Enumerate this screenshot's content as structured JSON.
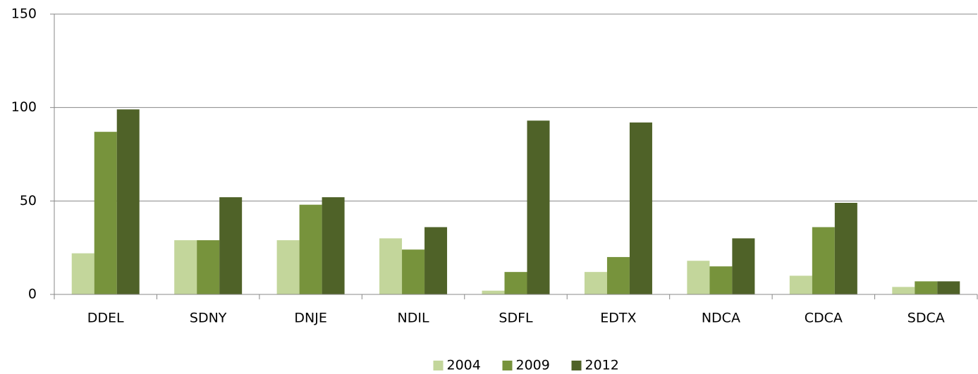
{
  "chart_data": {
    "type": "bar",
    "categories": [
      "DDEL",
      "SDNY",
      "DNJE",
      "NDIL",
      "SDFL",
      "EDTX",
      "NDCA",
      "CDCA",
      "SDCA"
    ],
    "series": [
      {
        "name": "2004",
        "color": "#c3d69b",
        "values": [
          22,
          29,
          29,
          30,
          2,
          12,
          18,
          10,
          4
        ]
      },
      {
        "name": "2009",
        "color": "#77933c",
        "values": [
          87,
          29,
          48,
          24,
          12,
          20,
          15,
          36,
          7
        ]
      },
      {
        "name": "2012",
        "color": "#4f6228",
        "values": [
          99,
          52,
          52,
          36,
          93,
          92,
          30,
          49,
          7
        ]
      }
    ],
    "ylim": [
      0,
      150
    ],
    "yticks": [
      0,
      50,
      100,
      150
    ],
    "grid": true,
    "legend": "bottom"
  }
}
